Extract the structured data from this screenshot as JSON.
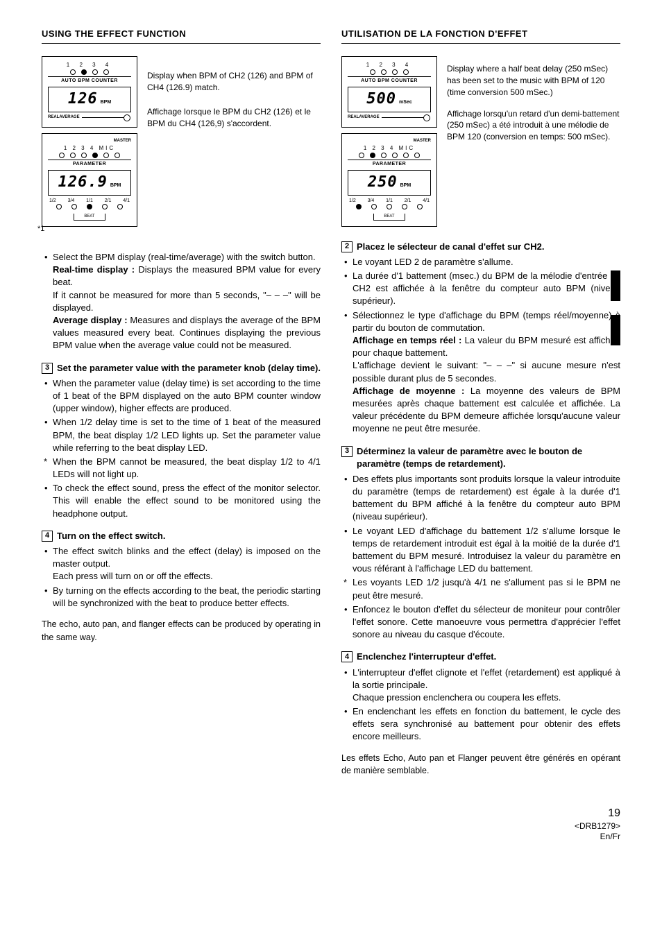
{
  "left": {
    "title": "USING THE EFFECT FUNCTION",
    "panel1": {
      "nums": "1 2 3 4",
      "leds": [
        false,
        true,
        false,
        false
      ],
      "label1": "AUTO BPM COUNTER",
      "seg": "126",
      "unit": "BPM",
      "slider_l": "REAL",
      "slider_r": "AVERAGE"
    },
    "caption1_en": "Display when BPM of CH2 (126) and BPM of CH4 (126.9) match.",
    "caption1_fr": "Affichage lorsque le BPM du CH2 (126) et le BPM du CH4 (126,9) s'accordent.",
    "panel2": {
      "nums": "1 2 3 4 MIC",
      "top_right": "MASTER",
      "leds": [
        false,
        false,
        false,
        true,
        false,
        false
      ],
      "label1": "PARAMETER",
      "seg": "126.9",
      "unit": "BPM",
      "beat_nums": [
        "1/2",
        "3/4",
        "1/1",
        "2/1",
        "4/1"
      ],
      "beat_leds": [
        false,
        false,
        true,
        false,
        false
      ],
      "beat_label": "BEAT"
    },
    "star": "*1",
    "bullets1": [
      "Select the BPM display (real-time/average) with the switch button.",
      "|b|Real-time display :|/b| Displays the measured BPM value for every beat.",
      "If it cannot be measured for more than 5 seconds, \"– – –\" will be displayed.",
      "|b|Average display :|/b| Measures and displays the average of the BPM values measured every beat. Continues displaying the previous BPM value when the average value could not be measured."
    ],
    "step3": "Set the parameter value with the parameter knob (delay time).",
    "step3_items": [
      {
        "t": "dot",
        "s": "When the parameter value (delay time) is set according to the time of 1 beat of the BPM displayed on the auto BPM counter window (upper window), higher effects are produced."
      },
      {
        "t": "dot",
        "s": "When 1/2 delay time is set to the time of 1 beat of the measured BPM, the beat display 1/2 LED lights up. Set the parameter value while referring to the beat display LED."
      },
      {
        "t": "star",
        "s": "When the BPM cannot be measured, the beat display 1/2 to 4/1 LEDs will not light up."
      },
      {
        "t": "dot",
        "s": "To check the effect sound, press the effect of the monitor selector. This will enable the effect sound to be monitored using the headphone output."
      }
    ],
    "step4": "Turn on the effect switch.",
    "step4_items": [
      {
        "t": "dot",
        "s": "The effect switch blinks and the effect (delay) is imposed on the master output.|br|Each press will turn on or off the effects."
      },
      {
        "t": "dot",
        "s": "By turning on the effects according to the beat, the periodic starting will be synchronized with the beat to produce better effects."
      }
    ],
    "closing": "The echo, auto pan, and flanger effects can be produced by operating in the same way."
  },
  "right": {
    "title": "UTILISATION DE LA FONCTION D'EFFET",
    "panel1": {
      "nums": "1 2 3 4",
      "leds": [
        false,
        false,
        false,
        false
      ],
      "label1": "AUTO BPM COUNTER",
      "seg": "500",
      "unit": "mSec",
      "slider_l": "REAL",
      "slider_r": "AVERAGE"
    },
    "caption1_en": "Display where a half beat delay (250 mSec) has been set to the music with BPM of 120 (time conversion 500 mSec.)",
    "caption1_fr": "Affichage lorsqu'un retard d'un demi-battement (250 mSec) a été introduit à une mélodie de BPM 120 (conversion en temps: 500 mSec).",
    "panel2": {
      "nums": "1 2 3 4 MIC",
      "top_right": "MASTER",
      "leds": [
        false,
        true,
        false,
        false,
        false,
        false
      ],
      "label1": "PARAMETER",
      "seg": "250",
      "unit": "BPM",
      "beat_nums": [
        "1/2",
        "3/4",
        "1/1",
        "2/1",
        "4/1"
      ],
      "beat_leds": [
        true,
        false,
        false,
        false,
        false
      ],
      "beat_label": "BEAT"
    },
    "step2": "Placez le sélecteur de canal d'effet sur CH2.",
    "step2_items": [
      {
        "t": "dot",
        "s": "Le voyant LED 2 de paramètre s'allume."
      },
      {
        "t": "dot",
        "s": "La durée d'1 battement (msec.) du BPM de la mélodie d'entrée du CH2 est affichée à la fenêtre du compteur auto BPM (niveau supérieur)."
      },
      {
        "t": "dot",
        "s": "Sélectionnez le type d'affichage du BPM (temps réel/moyenne) à partir du bouton de commutation.|br||b|Affichage en temps réel :|/b| La valeur du BPM mesuré est affichée pour chaque battement.|br|L'affichage devient le suivant: \"– – –\" si aucune mesure n'est possible durant plus de 5 secondes.|br||b|Affichage de moyenne :|/b| La moyenne des valeurs de BPM mesurées après chaque battement est calculée et affichée. La valeur précédente du BPM demeure affichée lorsqu'aucune valeur moyenne ne peut être mesurée."
      }
    ],
    "step3": "Déterminez la valeur de paramètre avec le bouton de paramètre (temps de retardement).",
    "step3_items": [
      {
        "t": "dot",
        "s": "Des effets plus importants sont produits lorsque la valeur introduite du paramètre (temps de retardement) est égale à la durée d'1 battement du BPM affiché à la fenêtre du compteur auto BPM (niveau supérieur)."
      },
      {
        "t": "dot",
        "s": "Le voyant LED d'affichage du battement 1/2 s'allume lorsque le temps de retardement introduit est égal à la moitié de la durée d'1 battement du BPM mesuré. Introduisez la valeur du paramètre en vous référant à l'affichage LED du battement."
      },
      {
        "t": "star",
        "s": "Les voyants LED 1/2 jusqu'à 4/1 ne s'allument pas si le BPM ne peut être mesuré."
      },
      {
        "t": "dot",
        "s": "Enfoncez le bouton d'effet du sélecteur de moniteur pour contrôler l'effet sonore. Cette manoeuvre vous permettra d'apprécier l'effet sonore au niveau du casque d'écoute."
      }
    ],
    "step4": "Enclenchez l'interrupteur d'effet.",
    "step4_items": [
      {
        "t": "dot",
        "s": "L'interrupteur d'effet clignote et l'effet (retardement) est appliqué à la sortie principale.|br|Chaque pression enclenchera ou coupera les effets."
      },
      {
        "t": "dot",
        "s": "En enclenchant les effets en fonction du battement, le cycle des effets sera synchronisé au battement pour obtenir des effets encore meilleurs."
      }
    ],
    "closing": "Les effets Echo, Auto pan et Flanger peuvent être générés en opérant de manière semblable."
  },
  "footer": {
    "page": "19",
    "ref": "<DRB1279>",
    "lang": "En/Fr"
  }
}
